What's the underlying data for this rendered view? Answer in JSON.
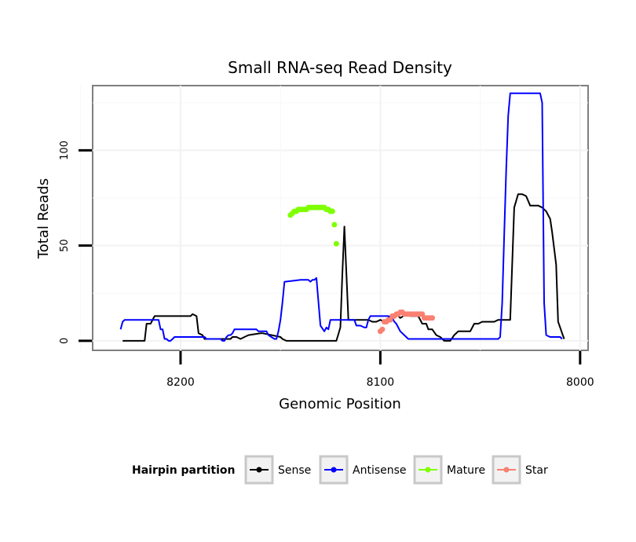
{
  "chart_data": {
    "type": "line",
    "title": "Small RNA-seq Read Density",
    "xlabel": "Genomic Position",
    "ylabel": "Total Reads",
    "xlim": [
      8244,
      7996
    ],
    "ylim": [
      -5,
      134
    ],
    "x_reversed": true,
    "x_ticks": [
      8200,
      8100,
      8000
    ],
    "x_tick_labels": [
      "8200",
      "8100",
      "8000"
    ],
    "y_ticks": [
      0,
      50,
      100
    ],
    "y_tick_labels": [
      "0",
      "50",
      "100"
    ],
    "grid": true,
    "legend": {
      "title": "Hairpin partition",
      "position": "bottom",
      "entries": [
        {
          "name": "Sense",
          "color": "#000000"
        },
        {
          "name": "Antisense",
          "color": "#0000FF"
        },
        {
          "name": "Mature",
          "color": "#7FFF00"
        },
        {
          "name": "Star",
          "color": "#FA8072"
        }
      ]
    },
    "series": [
      {
        "name": "Sense",
        "color": "#000000",
        "mode": "line",
        "x": [
          8229,
          8218,
          8217,
          8215,
          8213,
          8212,
          8195,
          8194,
          8192,
          8191,
          8189,
          8188,
          8186,
          8185,
          8175,
          8174,
          8172,
          8170,
          8168,
          8166,
          8160,
          8159,
          8150,
          8149,
          8147,
          8146,
          8145,
          8141,
          8122,
          8120,
          8119,
          8118,
          8116,
          8114,
          8113,
          8108,
          8106,
          8104,
          8102,
          8100,
          8098,
          8095,
          8092,
          8090,
          8087,
          8085,
          8081,
          8079,
          8077,
          8076,
          8074,
          8072,
          8070,
          8068,
          8066,
          8065,
          8063,
          8061,
          8055,
          8053,
          8051,
          8049,
          8047,
          8045,
          8043,
          8041,
          8039,
          8037,
          8035,
          8033,
          8031,
          8029,
          8027,
          8025,
          8023,
          8021,
          8019,
          8017,
          8015,
          8014,
          8012,
          8011,
          8010,
          8009,
          8008
        ],
        "y": [
          0,
          0,
          9,
          9,
          13,
          13,
          13,
          14,
          13,
          4,
          3,
          1,
          1,
          1,
          1,
          2,
          2,
          1,
          2,
          3,
          4,
          4,
          2,
          1,
          0,
          0,
          0,
          0,
          0,
          7,
          35,
          60,
          11,
          11,
          11,
          11,
          11,
          10,
          10,
          11,
          10,
          13,
          14,
          12,
          14,
          13,
          13,
          9,
          9,
          6,
          6,
          3,
          2,
          0,
          0,
          0,
          3,
          5,
          5,
          9,
          9,
          10,
          10,
          10,
          10,
          11,
          11,
          11,
          11,
          70,
          77,
          77,
          76,
          71,
          71,
          71,
          70,
          68,
          64,
          57,
          40,
          10,
          7,
          4,
          1
        ]
      },
      {
        "name": "Antisense",
        "color": "#0000FF",
        "mode": "line",
        "x": [
          8230,
          8229,
          8228,
          8227,
          8211,
          8210,
          8209,
          8208,
          8207,
          8206,
          8205,
          8204,
          8203,
          8202,
          8188,
          8187,
          8180,
          8179,
          8178,
          8177,
          8176,
          8175,
          8174,
          8173,
          8162,
          8161,
          8157,
          8156,
          8153,
          8152,
          8151,
          8150,
          8149,
          8148,
          8140,
          8138,
          8137,
          8136,
          8135,
          8134,
          8133,
          8132,
          8130,
          8128,
          8127,
          8126,
          8125,
          8124,
          8123,
          8122,
          8121,
          8120,
          8119,
          8113,
          8112,
          8111,
          8110,
          8108,
          8107,
          8106,
          8105,
          8104,
          8103,
          8102,
          8100,
          8096,
          8094,
          8093,
          8092,
          8090,
          8088,
          8086,
          8084,
          8082,
          8080,
          8078,
          8076,
          8074,
          8072,
          8070,
          8068,
          8066,
          8064,
          8062,
          8060,
          8058,
          8056,
          8054,
          8052,
          8050,
          8048,
          8046,
          8044,
          8043,
          8042,
          8041,
          8040,
          8039,
          8038,
          8037,
          8036,
          8035,
          8030,
          8026,
          8022,
          8020,
          8019,
          8018,
          8017,
          8015,
          8012,
          8010,
          8009
        ],
        "y": [
          6,
          10,
          11,
          11,
          11,
          6,
          6,
          1,
          1,
          0,
          0,
          1,
          2,
          2,
          2,
          1,
          1,
          0,
          0,
          2,
          3,
          3,
          4,
          6,
          6,
          5,
          5,
          3,
          1,
          1,
          5,
          11,
          20,
          31,
          32,
          32,
          32,
          32,
          31,
          32,
          32,
          33,
          8,
          5,
          7,
          6,
          11,
          11,
          11,
          11,
          11,
          11,
          11,
          11,
          8,
          8,
          8,
          7,
          7,
          11,
          13,
          13,
          13,
          13,
          13,
          13,
          12,
          10,
          9,
          5,
          3,
          1,
          1,
          1,
          1,
          1,
          1,
          1,
          1,
          1,
          1,
          1,
          1,
          1,
          1,
          1,
          1,
          1,
          1,
          1,
          1,
          1,
          1,
          1,
          1,
          1,
          2,
          20,
          55,
          90,
          118,
          130,
          130,
          130,
          130,
          130,
          125,
          20,
          3,
          2,
          2,
          2,
          1
        ]
      },
      {
        "name": "Mature",
        "color": "#7FFF00",
        "mode": "points",
        "x": [
          8145,
          8144,
          8143,
          8142,
          8141,
          8140,
          8139,
          8138,
          8137,
          8136,
          8135,
          8134,
          8133,
          8132,
          8131,
          8130,
          8129,
          8128,
          8127,
          8126,
          8125,
          8124,
          8123,
          8122
        ],
        "y": [
          66,
          67,
          68,
          68,
          69,
          69,
          69,
          69,
          69,
          70,
          70,
          70,
          70,
          70,
          70,
          70,
          70,
          70,
          69,
          69,
          68,
          68,
          61,
          51
        ]
      },
      {
        "name": "Star",
        "color": "#FA8072",
        "mode": "points",
        "x": [
          8100,
          8099,
          8098,
          8097,
          8096,
          8095,
          8094,
          8093,
          8092,
          8091,
          8090,
          8089,
          8088,
          8087,
          8086,
          8085,
          8084,
          8083,
          8082,
          8081,
          8080,
          8079,
          8078,
          8077,
          8076,
          8075,
          8074
        ],
        "y": [
          5,
          6,
          10,
          10,
          11,
          11,
          13,
          13,
          14,
          14,
          15,
          15,
          14,
          14,
          14,
          14,
          14,
          14,
          14,
          14,
          14,
          14,
          12,
          12,
          12,
          12,
          12
        ]
      }
    ]
  }
}
